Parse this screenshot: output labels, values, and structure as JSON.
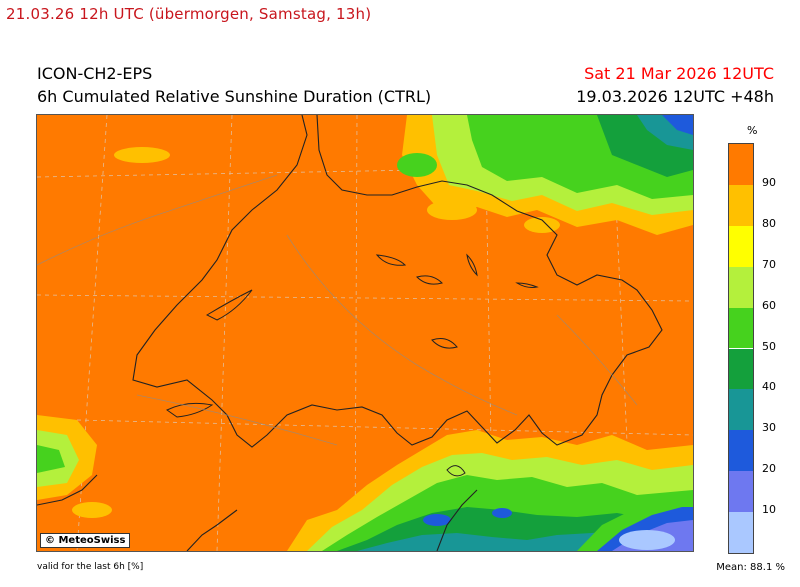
{
  "caption": "21.03.26 12h UTC (übermorgen, Samstag, 13h)",
  "header": {
    "model": "ICON-CH2-EPS",
    "product": "6h Cumulated Relative Sunshine Duration (CTRL)",
    "valid_date": "Sat 21 Mar 2026 12UTC",
    "run_info": "19.03.2026 12UTC +48h"
  },
  "map": {
    "copyright": "© MeteoSwiss"
  },
  "legend": {
    "unit": "%",
    "classes": [
      {
        "range": "90-100",
        "color": "#ff7a00"
      },
      {
        "range": "80-90",
        "color": "#ffc000"
      },
      {
        "range": "70-80",
        "color": "#ffff00"
      },
      {
        "range": "60-70",
        "color": "#b4f03c"
      },
      {
        "range": "50-60",
        "color": "#46d21e"
      },
      {
        "range": "40-50",
        "color": "#14a03c"
      },
      {
        "range": "30-40",
        "color": "#189696"
      },
      {
        "range": "20-30",
        "color": "#1e5adc"
      },
      {
        "range": "10-20",
        "color": "#6e78f0"
      },
      {
        "range": "0-10",
        "color": "#aac8ff"
      }
    ],
    "ticks": [
      "90",
      "80",
      "70",
      "60",
      "50",
      "40",
      "30",
      "20",
      "10"
    ]
  },
  "footer": {
    "validity": "valid for the last 6h [%]",
    "mean": "Mean:  88.1 %"
  }
}
